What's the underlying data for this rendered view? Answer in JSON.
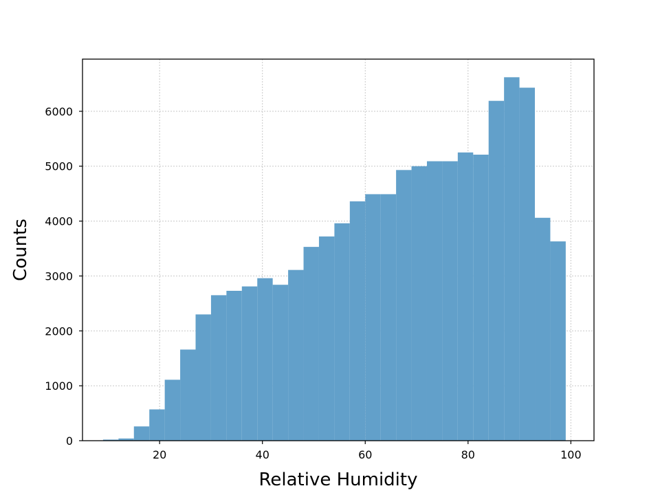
{
  "chart_data": {
    "type": "bar",
    "subtype": "histogram",
    "xlabel": "Relative Humidity",
    "ylabel": "Counts",
    "xlim": [
      5,
      104.5
    ],
    "ylim": [
      0,
      6950
    ],
    "x_ticks": [
      20,
      40,
      60,
      80,
      100
    ],
    "y_ticks": [
      0,
      1000,
      2000,
      3000,
      4000,
      5000,
      6000
    ],
    "grid": true,
    "bar_color": "#62a0ca",
    "bins": [
      {
        "start": 9.0,
        "end": 12.0,
        "value": 20
      },
      {
        "start": 12.0,
        "end": 15.0,
        "value": 40
      },
      {
        "start": 15.0,
        "end": 18.0,
        "value": 260
      },
      {
        "start": 18.0,
        "end": 21.0,
        "value": 570
      },
      {
        "start": 21.0,
        "end": 24.0,
        "value": 1110
      },
      {
        "start": 24.0,
        "end": 27.0,
        "value": 1660
      },
      {
        "start": 27.0,
        "end": 30.0,
        "value": 2300
      },
      {
        "start": 30.0,
        "end": 33.0,
        "value": 2650
      },
      {
        "start": 33.0,
        "end": 36.0,
        "value": 2730
      },
      {
        "start": 36.0,
        "end": 39.0,
        "value": 2810
      },
      {
        "start": 39.0,
        "end": 42.0,
        "value": 2960
      },
      {
        "start": 42.0,
        "end": 45.0,
        "value": 2840
      },
      {
        "start": 45.0,
        "end": 48.0,
        "value": 3110
      },
      {
        "start": 48.0,
        "end": 51.0,
        "value": 3530
      },
      {
        "start": 51.0,
        "end": 54.0,
        "value": 3720
      },
      {
        "start": 54.0,
        "end": 57.0,
        "value": 3960
      },
      {
        "start": 57.0,
        "end": 60.0,
        "value": 4360
      },
      {
        "start": 60.0,
        "end": 63.0,
        "value": 4490
      },
      {
        "start": 63.0,
        "end": 66.0,
        "value": 4490
      },
      {
        "start": 66.0,
        "end": 69.0,
        "value": 4930
      },
      {
        "start": 69.0,
        "end": 72.0,
        "value": 5000
      },
      {
        "start": 72.0,
        "end": 75.0,
        "value": 5090
      },
      {
        "start": 75.0,
        "end": 78.0,
        "value": 5090
      },
      {
        "start": 78.0,
        "end": 81.0,
        "value": 5250
      },
      {
        "start": 81.0,
        "end": 84.0,
        "value": 5210
      },
      {
        "start": 84.0,
        "end": 87.0,
        "value": 6190
      },
      {
        "start": 87.0,
        "end": 90.0,
        "value": 6620
      },
      {
        "start": 90.0,
        "end": 93.0,
        "value": 6430
      },
      {
        "start": 93.0,
        "end": 96.0,
        "value": 4060
      },
      {
        "start": 96.0,
        "end": 99.0,
        "value": 3630
      }
    ]
  }
}
